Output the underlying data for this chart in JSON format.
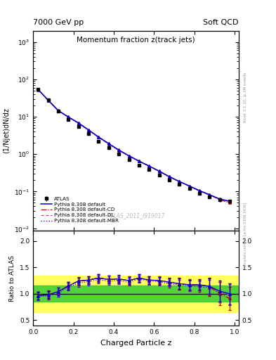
{
  "title": "Momentum fraction z(track jets)",
  "top_left_label": "7000 GeV pp",
  "top_right_label": "Soft QCD",
  "ylabel_main": "(1/Njet)dN/dz",
  "ylabel_ratio": "Ratio to ATLAS",
  "xlabel": "Charged Particle z",
  "watermark": "ATLAS_2011_I919017",
  "rivet_label": "Rivet 3.1.10, ≥ 3M events",
  "mcplots_label": "mcplots.cern.ch [arXiv:1306.3436]",
  "xlim": [
    0.0,
    1.02
  ],
  "ylim_main": [
    0.009,
    2000
  ],
  "ylim_ratio": [
    0.39,
    2.2
  ],
  "atlas_x": [
    0.025,
    0.075,
    0.125,
    0.175,
    0.225,
    0.275,
    0.325,
    0.375,
    0.425,
    0.475,
    0.525,
    0.575,
    0.625,
    0.675,
    0.725,
    0.775,
    0.825,
    0.875,
    0.925,
    0.975
  ],
  "atlas_y": [
    55,
    28,
    14,
    8.5,
    5.5,
    3.5,
    2.2,
    1.5,
    1.0,
    0.72,
    0.5,
    0.38,
    0.28,
    0.205,
    0.155,
    0.12,
    0.09,
    0.072,
    0.06,
    0.055
  ],
  "atlas_yerr": [
    3.0,
    1.5,
    0.8,
    0.5,
    0.35,
    0.22,
    0.14,
    0.1,
    0.07,
    0.05,
    0.04,
    0.03,
    0.022,
    0.017,
    0.013,
    0.01,
    0.008,
    0.007,
    0.006,
    0.006
  ],
  "py_def_y": [
    53,
    27.5,
    14.5,
    9.8,
    6.8,
    4.4,
    2.85,
    1.9,
    1.28,
    0.9,
    0.65,
    0.48,
    0.35,
    0.25,
    0.185,
    0.14,
    0.105,
    0.082,
    0.063,
    0.055
  ],
  "py_cd_y": [
    53,
    27.5,
    14.5,
    9.8,
    6.8,
    4.4,
    2.85,
    1.9,
    1.28,
    0.9,
    0.65,
    0.48,
    0.35,
    0.25,
    0.185,
    0.14,
    0.105,
    0.082,
    0.06,
    0.05
  ],
  "py_dl_y": [
    53,
    27.5,
    14.5,
    9.8,
    6.8,
    4.4,
    2.85,
    1.9,
    1.28,
    0.9,
    0.65,
    0.48,
    0.35,
    0.25,
    0.185,
    0.14,
    0.105,
    0.082,
    0.062,
    0.054
  ],
  "py_mbr_y": [
    52,
    27.0,
    14.2,
    9.6,
    6.6,
    4.3,
    2.78,
    1.85,
    1.25,
    0.88,
    0.64,
    0.47,
    0.345,
    0.245,
    0.182,
    0.138,
    0.103,
    0.08,
    0.062,
    0.054
  ],
  "ratio_def_y": [
    0.96,
    0.98,
    1.04,
    1.15,
    1.24,
    1.26,
    1.3,
    1.27,
    1.28,
    1.25,
    1.3,
    1.26,
    1.25,
    1.22,
    1.19,
    1.17,
    1.17,
    1.14,
    1.05,
    1.0
  ],
  "ratio_cd_y": [
    0.96,
    0.98,
    1.04,
    1.15,
    1.24,
    1.26,
    1.3,
    1.27,
    1.28,
    1.25,
    1.3,
    1.26,
    1.25,
    1.22,
    1.19,
    1.17,
    1.17,
    1.14,
    1.0,
    0.91
  ],
  "ratio_dl_y": [
    0.96,
    0.98,
    1.04,
    1.15,
    1.24,
    1.26,
    1.3,
    1.27,
    1.28,
    1.25,
    1.3,
    1.26,
    1.25,
    1.22,
    1.19,
    1.17,
    1.17,
    1.14,
    1.03,
    0.98
  ],
  "ratio_mbr_y": [
    0.95,
    0.96,
    1.01,
    1.13,
    1.2,
    1.23,
    1.27,
    1.24,
    1.25,
    1.22,
    1.28,
    1.24,
    1.23,
    1.19,
    1.17,
    1.15,
    1.14,
    1.11,
    1.03,
    0.98
  ],
  "color_atlas": "#000000",
  "color_def": "#0000cc",
  "color_cd": "#cc0000",
  "color_dl": "#dd44aa",
  "color_mbr": "#6600cc",
  "band_yellow": [
    0.65,
    1.35
  ],
  "band_green": [
    0.85,
    1.15
  ],
  "legend_labels": [
    "ATLAS",
    "Pythia 8.308 default",
    "Pythia 8.308 default-CD",
    "Pythia 8.308 default-DL",
    "Pythia 8.308 default-MBR"
  ]
}
